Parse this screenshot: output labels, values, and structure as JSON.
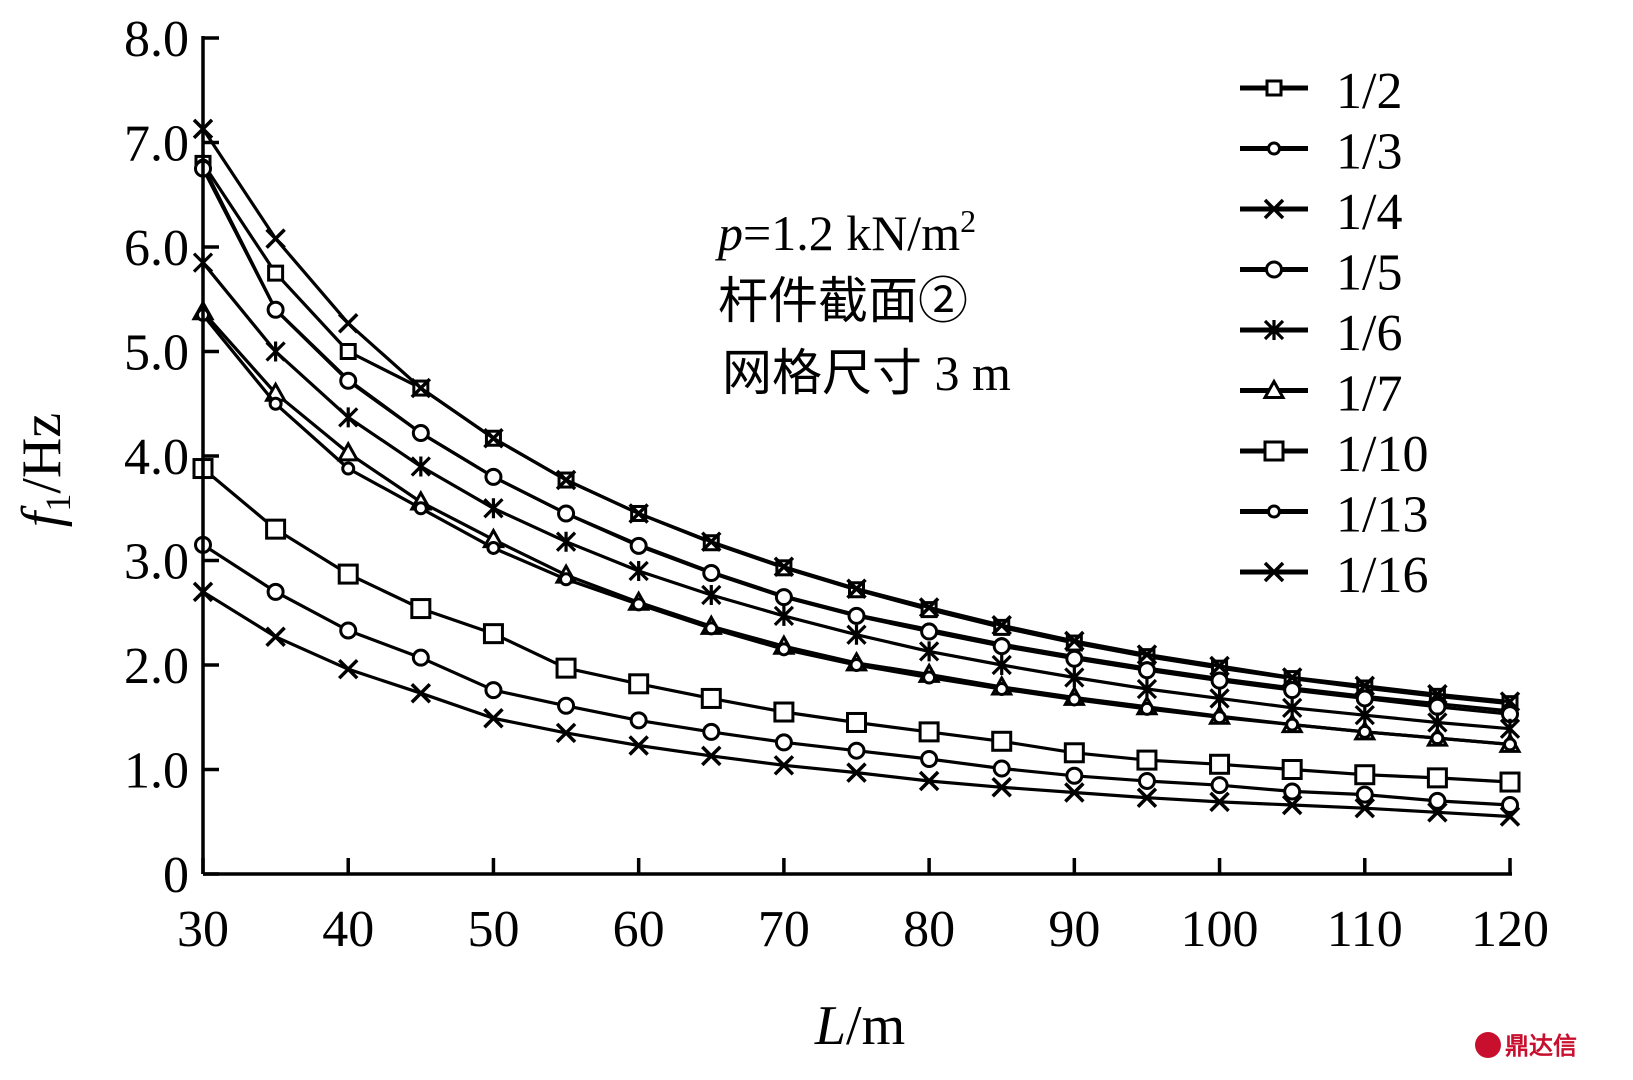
{
  "chart_data": {
    "type": "line",
    "xlabel": "L/m",
    "xlabel_italic": "L",
    "xlabel_unit": "/m",
    "ylabel_italic": "f",
    "ylabel_sub": "1",
    "ylabel_unit": "/Hz",
    "xlim": [
      30,
      120
    ],
    "ylim": [
      0,
      8.0
    ],
    "x_ticks": [
      30,
      40,
      50,
      60,
      70,
      80,
      90,
      100,
      110,
      120
    ],
    "x_tick_labels": [
      "30",
      "40",
      "50",
      "60",
      "70",
      "80",
      "90",
      "100",
      "110",
      "120"
    ],
    "y_ticks": [
      0,
      1,
      2,
      3,
      4,
      5,
      6,
      7,
      8
    ],
    "y_tick_labels": [
      "0",
      "1.0",
      "2.0",
      "3.0",
      "4.0",
      "5.0",
      "6.0",
      "7.0",
      "8.0"
    ],
    "grid": false,
    "legend_position": "top-right",
    "annotation": {
      "p_italic": "p",
      "p_rest": "=1.2 kN/m",
      "p_sup": "2",
      "line2": "杆件截面②",
      "line3": "网格尺寸 3 m"
    },
    "x": [
      30,
      35,
      40,
      45,
      50,
      55,
      60,
      65,
      70,
      75,
      80,
      85,
      90,
      95,
      100,
      105,
      110,
      115,
      120
    ],
    "series": [
      {
        "name": "1/2",
        "marker": "square-small",
        "values": [
          6.8,
          5.75,
          5.0,
          4.65,
          4.17,
          3.77,
          3.45,
          3.17,
          2.93,
          2.72,
          2.53,
          2.36,
          2.21,
          2.08,
          1.97,
          1.87,
          1.78,
          1.7,
          1.63
        ]
      },
      {
        "name": "1/3",
        "marker": "circle-small",
        "values": [
          6.78,
          5.4,
          4.73,
          4.22,
          3.8,
          3.45,
          3.15,
          2.89,
          2.66,
          2.48,
          2.34,
          2.2,
          2.08,
          1.97,
          1.87,
          1.78,
          1.7,
          1.63,
          1.56
        ]
      },
      {
        "name": "1/4",
        "marker": "x",
        "values": [
          7.13,
          6.08,
          5.27,
          4.65,
          4.17,
          3.77,
          3.45,
          3.18,
          2.94,
          2.73,
          2.55,
          2.38,
          2.23,
          2.1,
          1.99,
          1.88,
          1.8,
          1.72,
          1.65
        ]
      },
      {
        "name": "1/5",
        "marker": "circle",
        "values": [
          6.75,
          5.4,
          4.72,
          4.22,
          3.8,
          3.45,
          3.14,
          2.88,
          2.65,
          2.47,
          2.32,
          2.18,
          2.06,
          1.95,
          1.85,
          1.76,
          1.68,
          1.6,
          1.53
        ]
      },
      {
        "name": "1/6",
        "marker": "star",
        "values": [
          5.85,
          5.0,
          4.37,
          3.9,
          3.5,
          3.18,
          2.9,
          2.67,
          2.47,
          2.29,
          2.13,
          2.0,
          1.88,
          1.77,
          1.68,
          1.59,
          1.52,
          1.45,
          1.39
        ]
      },
      {
        "name": "1/7",
        "marker": "triangle",
        "values": [
          5.38,
          4.6,
          4.03,
          3.56,
          3.2,
          2.86,
          2.6,
          2.37,
          2.18,
          2.02,
          1.91,
          1.79,
          1.69,
          1.6,
          1.51,
          1.43,
          1.36,
          1.3,
          1.24
        ]
      },
      {
        "name": "1/10",
        "marker": "square",
        "values": [
          3.88,
          3.3,
          2.87,
          2.54,
          2.3,
          1.97,
          1.82,
          1.68,
          1.55,
          1.45,
          1.36,
          1.27,
          1.16,
          1.09,
          1.05,
          1.0,
          0.95,
          0.92,
          0.88
        ]
      },
      {
        "name": "1/13",
        "marker": "circle-small",
        "values": [
          5.35,
          4.5,
          3.88,
          3.5,
          3.12,
          2.82,
          2.58,
          2.35,
          2.15,
          2.0,
          1.88,
          1.77,
          1.67,
          1.58,
          1.5,
          1.43,
          1.36,
          1.3,
          1.24
        ]
      },
      {
        "name": "1/16",
        "marker": "x",
        "values": [
          2.7,
          2.27,
          1.96,
          1.73,
          1.49,
          1.35,
          1.23,
          1.13,
          1.04,
          0.97,
          0.89,
          0.83,
          0.78,
          0.73,
          0.69,
          0.66,
          0.63,
          0.59,
          0.55
        ]
      },
      {
        "name": "",
        "marker": "circle",
        "values": [
          3.15,
          2.7,
          2.33,
          2.07,
          1.76,
          1.61,
          1.47,
          1.36,
          1.26,
          1.18,
          1.1,
          1.01,
          0.94,
          0.89,
          0.85,
          0.79,
          0.76,
          0.7,
          0.66
        ]
      }
    ],
    "watermark": "鼎达信"
  }
}
